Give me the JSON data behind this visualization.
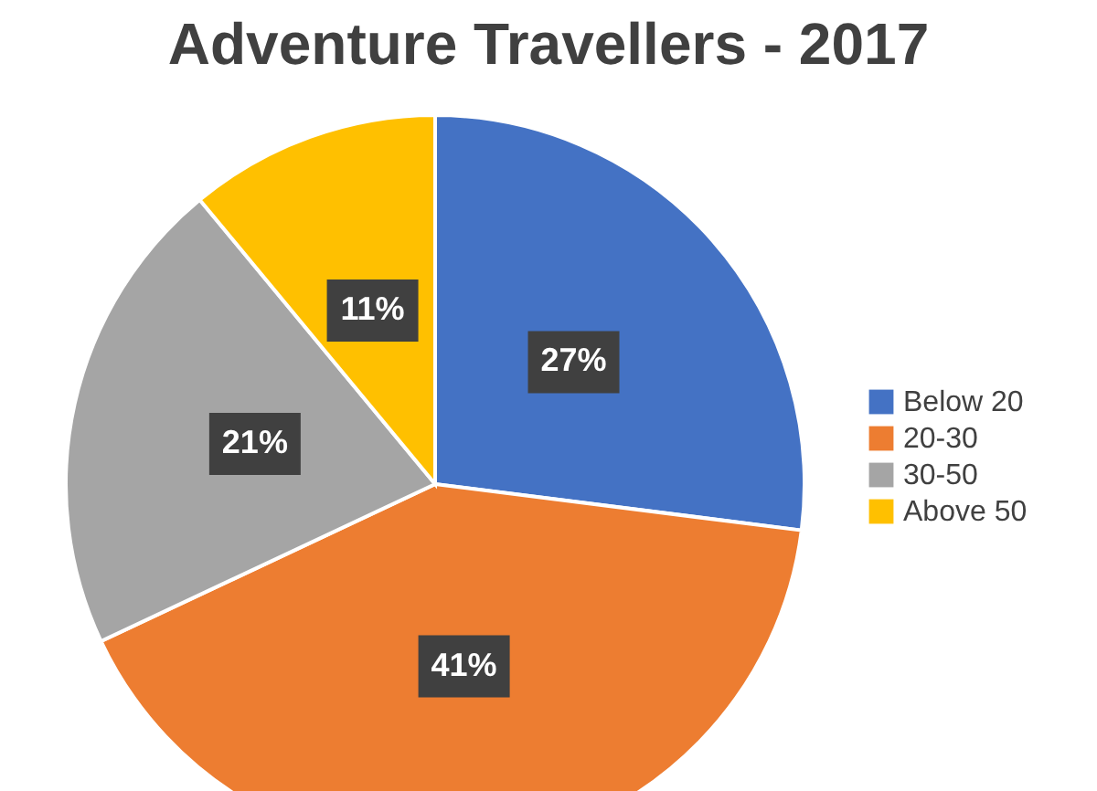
{
  "chart_data": {
    "type": "pie",
    "title": "Adventure Travellers - 2017",
    "categories": [
      "Below 20",
      "20-30",
      "30-50",
      "Above 50"
    ],
    "values": [
      27,
      41,
      21,
      11
    ],
    "colors": [
      "#4472c4",
      "#ed7d31",
      "#a5a5a5",
      "#ffc000"
    ],
    "value_labels": [
      "27%",
      "41%",
      "21%",
      "11%"
    ],
    "legend": "right"
  }
}
